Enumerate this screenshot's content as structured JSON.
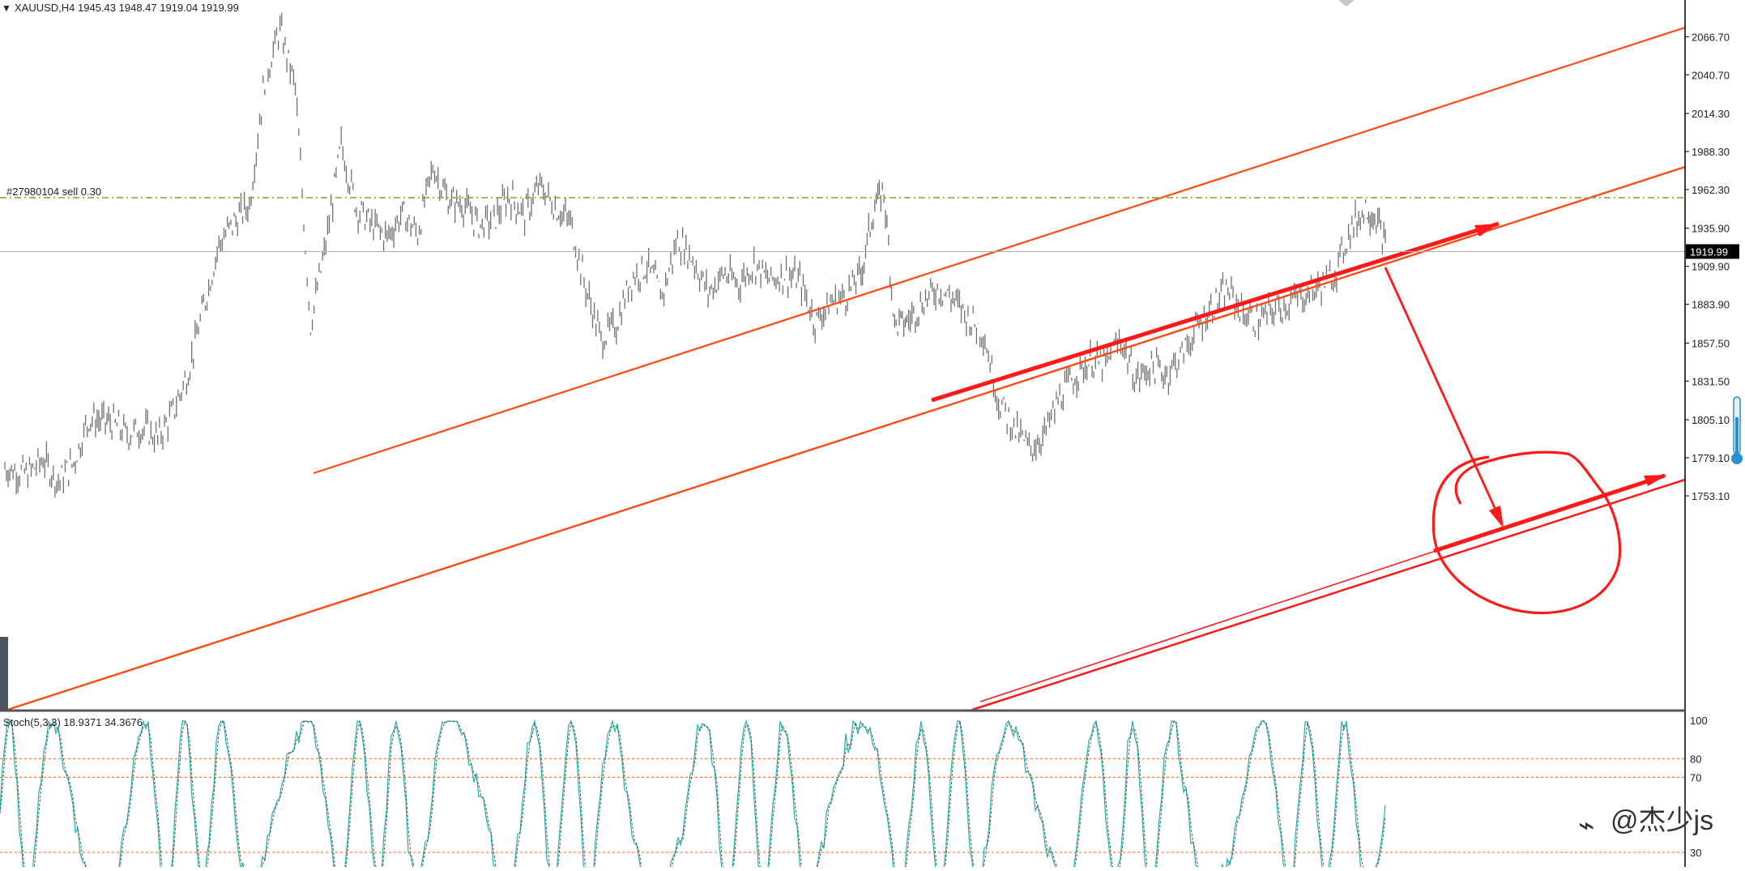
{
  "header": {
    "symbol_line": "XAUUSD,H4  1945.43 1948.47 1919.04 1919.99"
  },
  "order_line": {
    "label": "#27980104 sell 0.30",
    "price": 1956.8,
    "color": "#9aa03a"
  },
  "current_price": {
    "label": "1919.99",
    "value": 1919.99
  },
  "indicator": {
    "label": "Stoch(5,3,3) 18.9371 34.3676",
    "levels": [
      {
        "value": 80,
        "label": "80"
      },
      {
        "value": 70,
        "label": "70"
      },
      {
        "value": 30,
        "label": "30"
      }
    ],
    "top_label": "100",
    "main_color": "#20b2aa",
    "signal_color": "#555555",
    "level_color": "#ff5a1f"
  },
  "watermark": {
    "text": "@杰少js"
  },
  "colors": {
    "price_series": "#707070",
    "channel": "#ff4a14",
    "annotation": "#ff1a1a",
    "axis_text": "#222222",
    "grid_axis": "#000000"
  },
  "chart_data": {
    "type": "line",
    "title": "XAUUSD,H4",
    "ohlc_last": {
      "open": 1945.43,
      "high": 1948.47,
      "low": 1919.04,
      "close": 1919.99
    },
    "ylim": [
      1738,
      2081
    ],
    "y_ticks": [
      {
        "value": 2066.7,
        "label": "2066.70"
      },
      {
        "value": 2040.7,
        "label": "2040.70"
      },
      {
        "value": 2014.3,
        "label": "2014.30"
      },
      {
        "value": 1988.3,
        "label": "1988.30"
      },
      {
        "value": 1962.3,
        "label": "1962.30"
      },
      {
        "value": 1935.9,
        "label": "1935.90"
      },
      {
        "value": 1909.9,
        "label": "1909.90"
      },
      {
        "value": 1883.9,
        "label": "1883.90"
      },
      {
        "value": 1857.5,
        "label": "1857.50"
      },
      {
        "value": 1831.5,
        "label": "1831.50"
      },
      {
        "value": 1805.1,
        "label": "1805.10"
      },
      {
        "value": 1779.1,
        "label": "1779.10"
      },
      {
        "value": 1753.1,
        "label": "1753.10"
      }
    ],
    "x_range": [
      0,
      100
    ],
    "grid": false,
    "series": [
      {
        "values": [
          [
            0,
            1772
          ],
          [
            1.5,
            1768
          ],
          [
            2.5,
            1778
          ],
          [
            3.5,
            1762
          ],
          [
            4.5,
            1776
          ],
          [
            5.5,
            1806
          ],
          [
            7,
            1803
          ],
          [
            8,
            1795
          ],
          [
            9,
            1800
          ],
          [
            10,
            1792
          ],
          [
            11,
            1810
          ],
          [
            12,
            1838
          ],
          [
            13,
            1882
          ],
          [
            14,
            1925
          ],
          [
            15,
            1940
          ],
          [
            16,
            1952
          ],
          [
            17,
            2038
          ],
          [
            18,
            2072
          ],
          [
            19,
            2032
          ],
          [
            20,
            1870
          ],
          [
            21,
            1925
          ],
          [
            22,
            1993
          ],
          [
            23,
            1950
          ],
          [
            24,
            1938
          ],
          [
            25,
            1930
          ],
          [
            26,
            1946
          ],
          [
            27,
            1932
          ],
          [
            28,
            1978
          ],
          [
            29,
            1955
          ],
          [
            30,
            1952
          ],
          [
            31,
            1938
          ],
          [
            32,
            1942
          ],
          [
            33,
            1958
          ],
          [
            34,
            1945
          ],
          [
            35,
            1965
          ],
          [
            36,
            1950
          ],
          [
            37,
            1940
          ],
          [
            38,
            1895
          ],
          [
            39,
            1860
          ],
          [
            40,
            1870
          ],
          [
            41,
            1902
          ],
          [
            42,
            1910
          ],
          [
            43,
            1890
          ],
          [
            44,
            1928
          ],
          [
            45,
            1915
          ],
          [
            46,
            1892
          ],
          [
            47,
            1905
          ],
          [
            48,
            1898
          ],
          [
            49,
            1912
          ],
          [
            50,
            1900
          ],
          [
            51,
            1905
          ],
          [
            52,
            1900
          ],
          [
            53,
            1872
          ],
          [
            54,
            1885
          ],
          [
            55,
            1890
          ],
          [
            56,
            1905
          ],
          [
            56.8,
            1948
          ],
          [
            57.5,
            1962
          ],
          [
            58.2,
            1870
          ],
          [
            59,
            1872
          ],
          [
            60,
            1885
          ],
          [
            61,
            1895
          ],
          [
            62,
            1888
          ],
          [
            63,
            1875
          ],
          [
            64,
            1865
          ],
          [
            65,
            1818
          ],
          [
            66,
            1800
          ],
          [
            67,
            1785
          ],
          [
            68,
            1795
          ],
          [
            69,
            1820
          ],
          [
            70,
            1835
          ],
          [
            71,
            1845
          ],
          [
            72,
            1842
          ],
          [
            73,
            1860
          ],
          [
            74,
            1832
          ],
          [
            75,
            1842
          ],
          [
            76,
            1836
          ],
          [
            77,
            1850
          ],
          [
            78,
            1868
          ],
          [
            79,
            1883
          ],
          [
            80,
            1893
          ],
          [
            81,
            1878
          ],
          [
            82,
            1872
          ],
          [
            83,
            1880
          ],
          [
            84,
            1885
          ],
          [
            85,
            1890
          ],
          [
            86,
            1896
          ],
          [
            87,
            1905
          ],
          [
            88,
            1935
          ],
          [
            89,
            1950
          ],
          [
            89.7,
            1943
          ],
          [
            90.4,
            1920
          ]
        ]
      }
    ]
  }
}
